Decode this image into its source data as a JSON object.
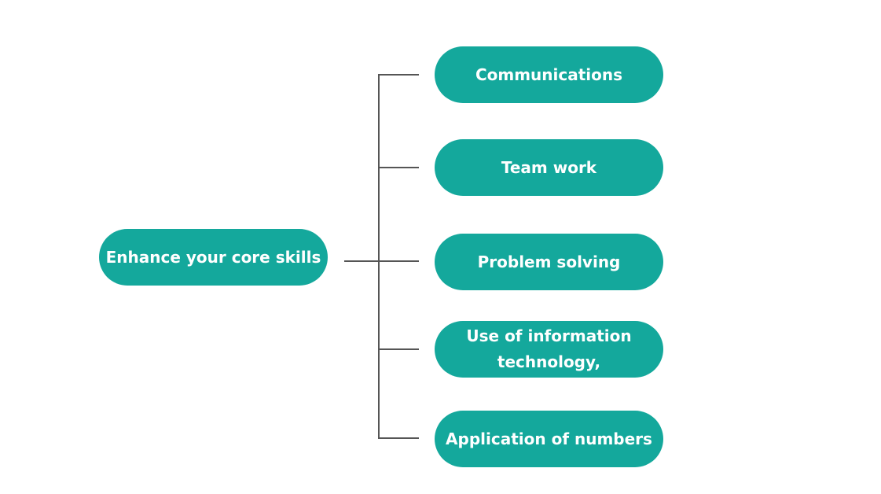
{
  "diagram": {
    "accent_color": "#14a89c",
    "line_color": "#555555",
    "root": {
      "label": "Enhance your core skills"
    },
    "children": [
      {
        "label": "Communications"
      },
      {
        "label": "Team work"
      },
      {
        "label": "Problem solving"
      },
      {
        "label": "Use of information\ntechnology,"
      },
      {
        "label": "Application of numbers"
      }
    ]
  }
}
